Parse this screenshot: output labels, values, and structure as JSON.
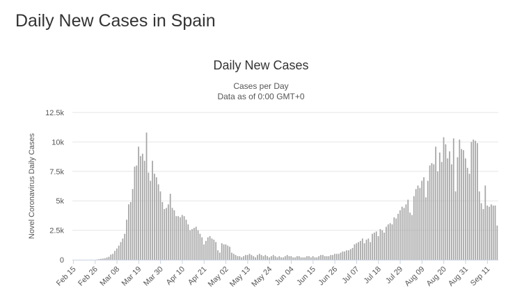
{
  "page": {
    "title": "Daily New Cases in Spain"
  },
  "chart_data": {
    "type": "bar",
    "title": "Daily New Cases",
    "subtitle_line1": "Cases per Day",
    "subtitle_line2": "Data as of 0:00 GMT+0",
    "xlabel": "",
    "ylabel": "Novel Coronavirus Daily Cases",
    "ylim": [
      0,
      12500
    ],
    "y_ticks": [
      {
        "value": 0,
        "label": "0"
      },
      {
        "value": 2500,
        "label": "2.5k"
      },
      {
        "value": 5000,
        "label": "5k"
      },
      {
        "value": 7500,
        "label": "7.5k"
      },
      {
        "value": 10000,
        "label": "10k"
      },
      {
        "value": 12500,
        "label": "12.5k"
      }
    ],
    "x_start": "Feb 15",
    "x_ticks": [
      {
        "day": 0,
        "label": "Feb 15"
      },
      {
        "day": 11,
        "label": "Feb 26"
      },
      {
        "day": 22,
        "label": "Mar 08"
      },
      {
        "day": 33,
        "label": "Mar 19"
      },
      {
        "day": 44,
        "label": "Mar 30"
      },
      {
        "day": 55,
        "label": "Apr 10"
      },
      {
        "day": 66,
        "label": "Apr 21"
      },
      {
        "day": 77,
        "label": "May 02"
      },
      {
        "day": 88,
        "label": "May 13"
      },
      {
        "day": 99,
        "label": "May 24"
      },
      {
        "day": 110,
        "label": "Jun 04"
      },
      {
        "day": 121,
        "label": "Jun 15"
      },
      {
        "day": 132,
        "label": "Jun 26"
      },
      {
        "day": 143,
        "label": "Jul 07"
      },
      {
        "day": 154,
        "label": "Jul 18"
      },
      {
        "day": 165,
        "label": "Jul 29"
      },
      {
        "day": 176,
        "label": "Aug 09"
      },
      {
        "day": 187,
        "label": "Aug 20"
      },
      {
        "day": 198,
        "label": "Aug 31"
      },
      {
        "day": 209,
        "label": "Sep 11"
      }
    ],
    "series": [
      {
        "name": "Daily Cases",
        "color": "#a6a6a6",
        "values": [
          0,
          0,
          0,
          0,
          0,
          0,
          0,
          0,
          0,
          10,
          0,
          0,
          20,
          50,
          80,
          100,
          130,
          190,
          250,
          440,
          500,
          750,
          950,
          1200,
          1500,
          1800,
          2200,
          3400,
          4700,
          4900,
          6000,
          7900,
          8000,
          9600,
          8800,
          9000,
          8400,
          10800,
          7400,
          6700,
          8400,
          7300,
          7000,
          6400,
          5800,
          4900,
          4300,
          4400,
          4700,
          5600,
          4400,
          4200,
          3700,
          3700,
          3600,
          3800,
          3700,
          3400,
          3000,
          2500,
          2600,
          2700,
          2800,
          2500,
          2200,
          1900,
          1300,
          1600,
          1900,
          2000,
          1800,
          1700,
          1500,
          800,
          600,
          1400,
          1300,
          1300,
          1200,
          1100,
          600,
          500,
          400,
          300,
          300,
          200,
          300,
          400,
          400,
          500,
          400,
          300,
          200,
          400,
          500,
          400,
          300,
          400,
          300,
          200,
          300,
          400,
          300,
          200,
          300,
          200,
          200,
          300,
          400,
          300,
          300,
          200,
          200,
          300,
          300,
          200,
          200,
          200,
          300,
          300,
          200,
          300,
          200,
          200,
          300,
          400,
          400,
          300,
          300,
          300,
          400,
          400,
          500,
          500,
          500,
          600,
          700,
          700,
          800,
          800,
          900,
          1000,
          1300,
          1400,
          1500,
          1600,
          1800,
          1400,
          1700,
          1800,
          1500,
          2200,
          2300,
          2400,
          2000,
          2600,
          2500,
          2300,
          2800,
          3000,
          3100,
          3000,
          3600,
          3500,
          3900,
          4200,
          4500,
          4400,
          4700,
          5100,
          4000,
          3800,
          5400,
          6000,
          6300,
          6100,
          6700,
          7000,
          5300,
          6700,
          8000,
          8200,
          8100,
          9600,
          7500,
          9100,
          8300,
          10400,
          9800,
          8600,
          9200,
          8100,
          10300,
          5800,
          8700,
          10200,
          9400,
          9300,
          8600,
          7800,
          7300,
          10000,
          10200,
          10100,
          9900,
          5800,
          4800,
          4300,
          6300,
          4600,
          4500,
          4700,
          4600,
          4600,
          2900
        ]
      }
    ]
  }
}
